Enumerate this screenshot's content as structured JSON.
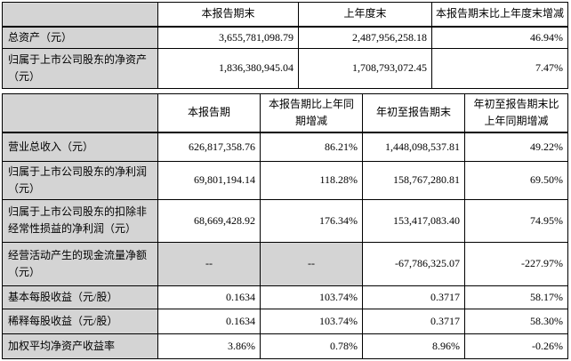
{
  "colors": {
    "shaded_cell_bg": "#d4d4d4",
    "cell_bg": "#ffffff",
    "border": "#000000",
    "text": "#000000"
  },
  "table1": {
    "columns": [
      "",
      "本报告期末",
      "上年度末",
      "本报告期末比上年度末增减"
    ],
    "rows": [
      {
        "label": "总资产（元）",
        "values": [
          "3,655,781,098.79",
          "2,487,956,258.18",
          "46.94%"
        ]
      },
      {
        "label": "归属于上市公司股东的净资产（元）",
        "values": [
          "1,836,380,945.04",
          "1,708,793,072.45",
          "7.47%"
        ]
      }
    ]
  },
  "table2": {
    "columns": [
      "",
      "本报告期",
      "本报告期比上年同期增减",
      "年初至报告期末",
      "年初至报告期末比上年同期增减"
    ],
    "rows": [
      {
        "label": "营业总收入（元）",
        "values": [
          "626,817,358.76",
          "86.21%",
          "1,448,098,537.81",
          "49.22%"
        ]
      },
      {
        "label": "归属于上市公司股东的净利润（元）",
        "values": [
          "69,801,194.14",
          "118.28%",
          "158,767,280.81",
          "69.50%"
        ]
      },
      {
        "label": "归属于上市公司股东的扣除非经常性损益的净利润（元）",
        "values": [
          "68,669,428.92",
          "176.34%",
          "153,417,083.40",
          "74.95%"
        ]
      },
      {
        "label": "经营活动产生的现金流量净额（元）",
        "values": [
          "--",
          "--",
          "-67,786,325.07",
          "-227.97%"
        ],
        "gray_cells": [
          0,
          1
        ]
      },
      {
        "label": "基本每股收益（元/股）",
        "values": [
          "0.1634",
          "103.74%",
          "0.3717",
          "58.17%"
        ]
      },
      {
        "label": "稀释每股收益（元/股）",
        "values": [
          "0.1634",
          "103.74%",
          "0.3717",
          "58.30%"
        ]
      },
      {
        "label": "加权平均净资产收益率",
        "values": [
          "3.86%",
          "0.78%",
          "8.96%",
          "-0.26%"
        ]
      }
    ]
  }
}
